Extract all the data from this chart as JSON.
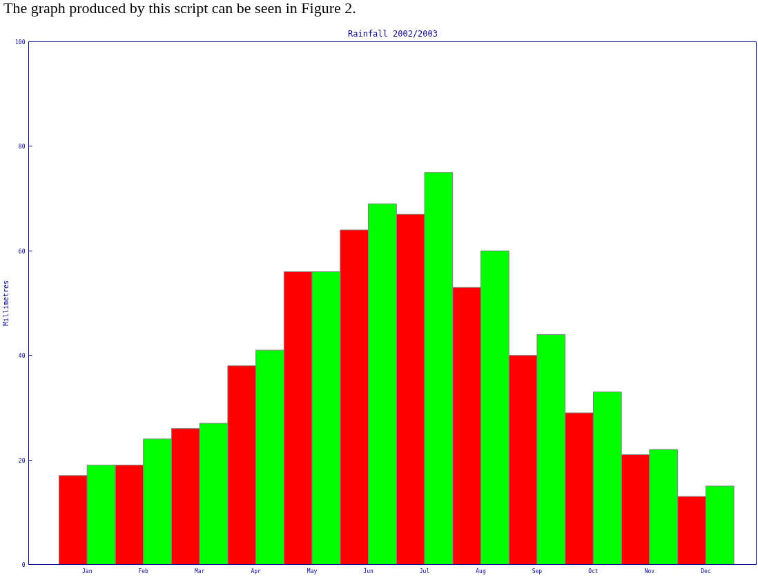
{
  "chart_data": {
    "type": "bar",
    "title": "Rainfall 2002/2003",
    "ylabel": "Millimetres",
    "annotations": [
      "The graph produced by this script can be seen in Figure 2."
    ],
    "categories": [
      "Jan",
      "Feb",
      "Mar",
      "Apr",
      "May",
      "Jun",
      "Jul",
      "Aug",
      "Sep",
      "Oct",
      "Nov",
      "Dec"
    ],
    "series": [
      {
        "color": "#ff0000",
        "values": [
          17,
          19,
          26,
          38,
          56,
          64,
          67,
          53,
          40,
          29,
          21,
          13
        ]
      },
      {
        "color": "#00ff00",
        "values": [
          19,
          24,
          27,
          41,
          56,
          69,
          75,
          60,
          44,
          33,
          22,
          15
        ]
      }
    ],
    "ylim": [
      0,
      100
    ],
    "yticks": [
      0,
      20,
      40,
      60,
      80,
      100
    ],
    "grid": false
  }
}
